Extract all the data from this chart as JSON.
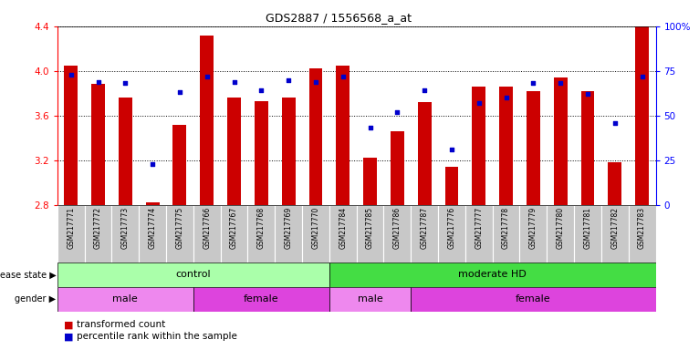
{
  "title": "GDS2887 / 1556568_a_at",
  "samples": [
    "GSM217771",
    "GSM217772",
    "GSM217773",
    "GSM217774",
    "GSM217775",
    "GSM217766",
    "GSM217767",
    "GSM217768",
    "GSM217769",
    "GSM217770",
    "GSM217784",
    "GSM217785",
    "GSM217786",
    "GSM217787",
    "GSM217776",
    "GSM217777",
    "GSM217778",
    "GSM217779",
    "GSM217780",
    "GSM217781",
    "GSM217782",
    "GSM217783"
  ],
  "bar_values": [
    4.05,
    3.88,
    3.76,
    2.82,
    3.52,
    4.32,
    3.76,
    3.73,
    3.76,
    4.02,
    4.05,
    3.22,
    3.46,
    3.72,
    3.14,
    3.86,
    3.86,
    3.82,
    3.94,
    3.82,
    3.18,
    4.4
  ],
  "percentile_values": [
    73,
    69,
    68,
    23,
    63,
    72,
    69,
    64,
    70,
    69,
    72,
    43,
    52,
    64,
    31,
    57,
    60,
    68,
    68,
    62,
    46,
    72
  ],
  "ymin": 2.8,
  "ymax": 4.4,
  "yticks": [
    2.8,
    3.2,
    3.6,
    4.0,
    4.4
  ],
  "bar_color": "#cc0000",
  "dot_color": "#0000cc",
  "disease_state_groups": [
    {
      "label": "control",
      "start": 0,
      "end": 10,
      "color": "#aaffaa"
    },
    {
      "label": "moderate HD",
      "start": 10,
      "end": 22,
      "color": "#44dd44"
    }
  ],
  "gender_groups": [
    {
      "label": "male",
      "start": 0,
      "end": 5,
      "color": "#ee88ee"
    },
    {
      "label": "female",
      "start": 5,
      "end": 10,
      "color": "#dd44dd"
    },
    {
      "label": "male",
      "start": 10,
      "end": 13,
      "color": "#ee88ee"
    },
    {
      "label": "female",
      "start": 13,
      "end": 22,
      "color": "#dd44dd"
    }
  ]
}
